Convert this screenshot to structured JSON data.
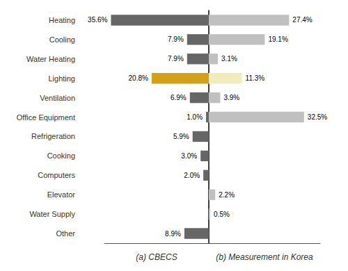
{
  "chart_data": {
    "type": "bar",
    "orientation": "horizontal",
    "categories": [
      "Heating",
      "Cooling",
      "Water Heating",
      "Lighting",
      "Ventilation",
      "Office Equipment",
      "Refrigeration",
      "Cooking",
      "Computers",
      "Elevator",
      "Water Supply",
      "Other"
    ],
    "series": [
      {
        "name": "(a) CBECS",
        "values": [
          35.6,
          7.9,
          7.9,
          20.8,
          6.9,
          1.0,
          5.9,
          3.0,
          2.0,
          0.0,
          0.0,
          8.9
        ],
        "value_labels": [
          "35.6%",
          "7.9%",
          "7.9%",
          "20.8%",
          "6.9%",
          "1.0%",
          "5.9%",
          "3.0%",
          "2.0%",
          null,
          null,
          "8.9%"
        ],
        "colors": [
          "#666666",
          "#666666",
          "#666666",
          "#D4A017",
          "#666666",
          "#666666",
          "#666666",
          "#666666",
          "#666666",
          "#666666",
          "#666666",
          "#666666"
        ]
      },
      {
        "name": "(b) Measurement in Korea",
        "values": [
          27.4,
          19.1,
          3.1,
          11.3,
          3.9,
          32.5,
          0.0,
          0.0,
          0.0,
          2.2,
          0.5,
          0.0
        ],
        "value_labels": [
          "27.4%",
          "19.1%",
          "3.1%",
          "11.3%",
          "3.9%",
          "32.5%",
          null,
          null,
          null,
          "2.2%",
          "0.5%",
          null
        ],
        "colors": [
          "#C0C0C0",
          "#C0C0C0",
          "#C0C0C0",
          "#F0ECC0",
          "#C0C0C0",
          "#C0C0C0",
          "#C0C0C0",
          "#C0C0C0",
          "#C0C0C0",
          "#C0C0C0",
          "#C0C0C0",
          "#C0C0C0"
        ]
      }
    ],
    "xlim": [
      0,
      38
    ],
    "data_labels": true,
    "tick_labels": "y",
    "grid": false
  }
}
